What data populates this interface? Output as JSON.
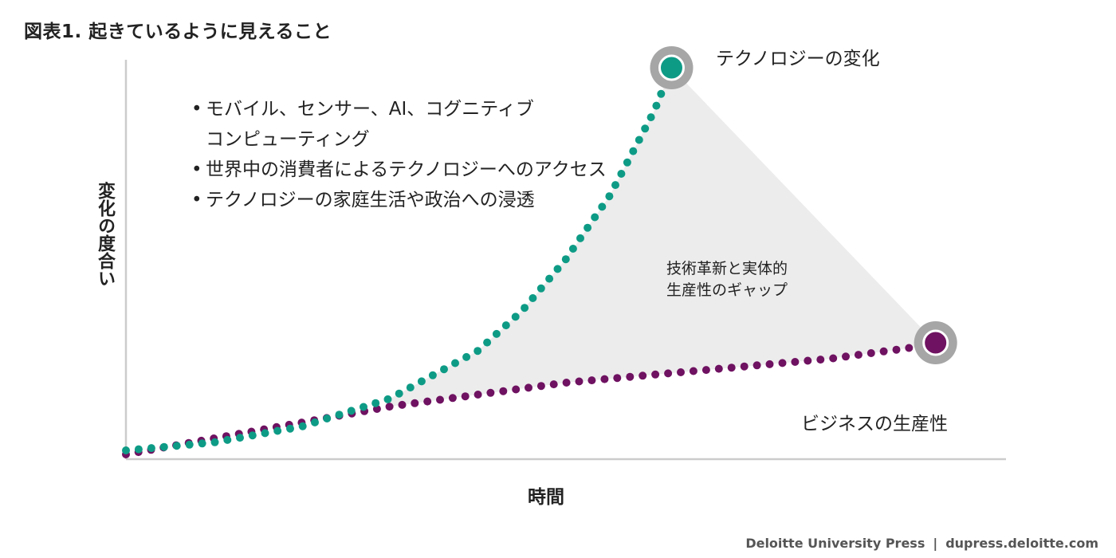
{
  "title": "図表1.  起きているように見えること",
  "footer": {
    "publisher": "Deloitte University Press",
    "separator": "|",
    "url": "dupress.deloitte.com"
  },
  "colors": {
    "technology": "#0e9b86",
    "business": "#6f1261",
    "gap_fill": "#ececec",
    "marker_ring": "#a6a6a6",
    "axis": "#cccccc"
  },
  "bullets": [
    "モバイル、センサー、AI、コグニティブ\nコンピューティング",
    "世界中の消費者によるテクノロジーへのアクセス",
    "テクノロジーの家庭生活や政治への浸透"
  ],
  "chart_data": {
    "type": "line",
    "title": "図表1.  起きているように見えること",
    "xlabel": "時間",
    "ylabel": "変化の度合い",
    "xlim": [
      0,
      100
    ],
    "ylim": [
      0,
      100
    ],
    "grid": false,
    "axis_ticks": false,
    "line_style": "dotted",
    "series": [
      {
        "name": "テクノロジーの変化",
        "color": "#0e9b86",
        "curve": "exponential",
        "x": [
          0,
          10,
          20,
          30,
          40,
          45,
          50,
          55,
          60,
          62
        ],
        "y": [
          1,
          3,
          7,
          14,
          26,
          36,
          49,
          65,
          86,
          97
        ]
      },
      {
        "name": "ビジネスの生産性",
        "color": "#6f1261",
        "curve": "concave",
        "x": [
          0,
          10,
          20,
          30,
          40,
          50,
          60,
          70,
          80,
          90,
          92
        ],
        "y": [
          0,
          4,
          8,
          12,
          15,
          18,
          20,
          22,
          24,
          27,
          28
        ]
      }
    ],
    "annotations": [
      {
        "text": "技術革新と実体的\n生産性のギャップ",
        "type": "shaded-region-label"
      }
    ]
  }
}
